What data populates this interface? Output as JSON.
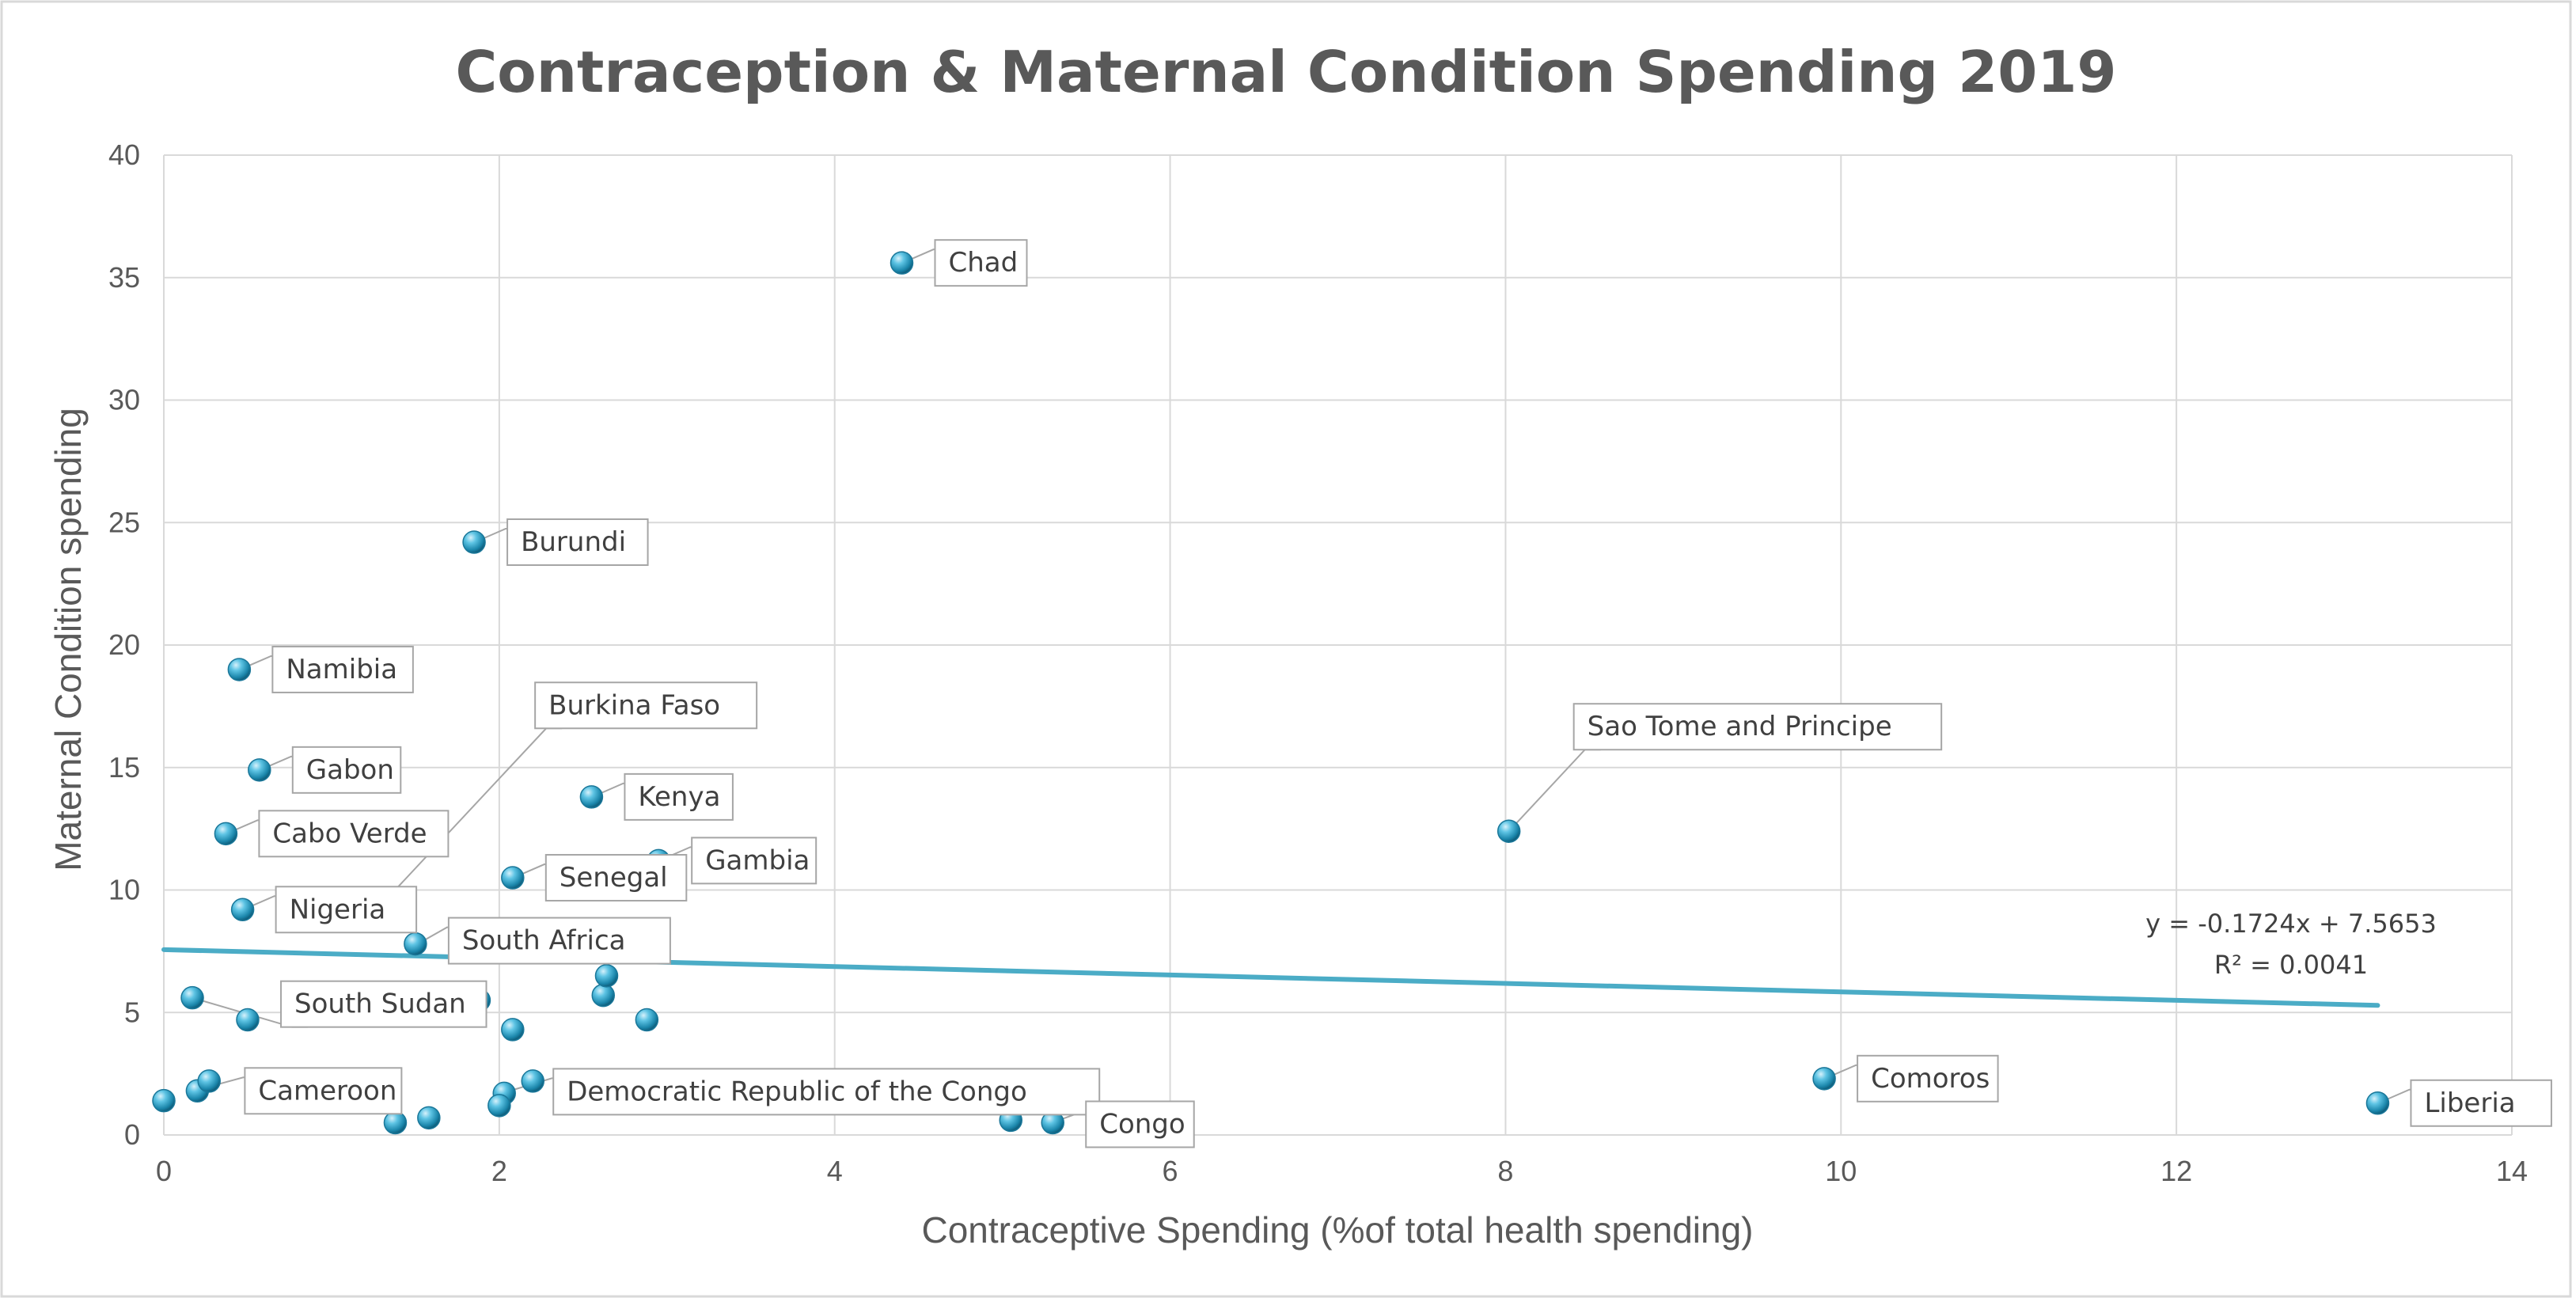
{
  "chart_data": {
    "type": "scatter",
    "title": "Contraception & Maternal Condition Spending 2019",
    "xlabel": "Contraceptive Spending (%of total health spending)",
    "ylabel": "Maternal Condition spending",
    "xlim": [
      0,
      14
    ],
    "ylim": [
      0,
      40
    ],
    "x_ticks": [
      "0",
      "2",
      "4",
      "6",
      "8",
      "10",
      "12",
      "14"
    ],
    "y_ticks": [
      "0",
      "5",
      "10",
      "15",
      "20",
      "25",
      "30",
      "35",
      "40"
    ],
    "grid": true,
    "legend": "none",
    "colors": {
      "marker": "#2e9fc4",
      "trendline": "#4bacc6",
      "grid": "#d9d9d9",
      "label_border": "#a6a6a6"
    },
    "points": [
      {
        "x": 4.4,
        "y": 35.6,
        "label": "Chad"
      },
      {
        "x": 1.85,
        "y": 24.2,
        "label": "Burundi"
      },
      {
        "x": 0.45,
        "y": 19.0,
        "label": "Namibia"
      },
      {
        "x": 0.57,
        "y": 14.9,
        "label": "Gabon"
      },
      {
        "x": 0.37,
        "y": 12.3,
        "label": "Cabo Verde"
      },
      {
        "x": 0.47,
        "y": 9.2,
        "label": "Nigeria"
      },
      {
        "x": 1.27,
        "y": 9.2,
        "label": "Burkina Faso"
      },
      {
        "x": 2.55,
        "y": 13.8,
        "label": "Kenya"
      },
      {
        "x": 2.95,
        "y": 11.2,
        "label": "Gambia"
      },
      {
        "x": 2.08,
        "y": 10.5,
        "label": "Senegal"
      },
      {
        "x": 1.5,
        "y": 7.8,
        "label": "South Africa"
      },
      {
        "x": 0.17,
        "y": 5.6,
        "label": "South Sudan"
      },
      {
        "x": 0.2,
        "y": 1.8,
        "label": "Cameroon"
      },
      {
        "x": 2.03,
        "y": 1.7,
        "label": "Democratic Republic of the Congo"
      },
      {
        "x": 5.3,
        "y": 0.5,
        "label": "Congo"
      },
      {
        "x": 8.02,
        "y": 12.4,
        "label": "Sao Tome and Principe"
      },
      {
        "x": 9.9,
        "y": 2.3,
        "label": "Comoros"
      },
      {
        "x": 13.2,
        "y": 1.3,
        "label": "Liberia"
      },
      {
        "x": 0.0,
        "y": 1.4
      },
      {
        "x": 0.27,
        "y": 2.2
      },
      {
        "x": 0.5,
        "y": 4.7
      },
      {
        "x": 1.38,
        "y": 0.5
      },
      {
        "x": 1.58,
        "y": 0.7
      },
      {
        "x": 1.8,
        "y": 4.9
      },
      {
        "x": 1.88,
        "y": 5.5
      },
      {
        "x": 2.08,
        "y": 4.3
      },
      {
        "x": 2.0,
        "y": 1.2
      },
      {
        "x": 2.2,
        "y": 2.2
      },
      {
        "x": 2.62,
        "y": 5.7
      },
      {
        "x": 2.64,
        "y": 6.5
      },
      {
        "x": 2.88,
        "y": 4.7
      },
      {
        "x": 5.05,
        "y": 0.6
      }
    ],
    "trendline": {
      "type": "linear",
      "slope": -0.1724,
      "intercept": 7.5653,
      "x_range": [
        0,
        13.2
      ],
      "equation": "y = -0.1724x + 7.5653",
      "r_squared": "R² = 0.0041"
    }
  }
}
